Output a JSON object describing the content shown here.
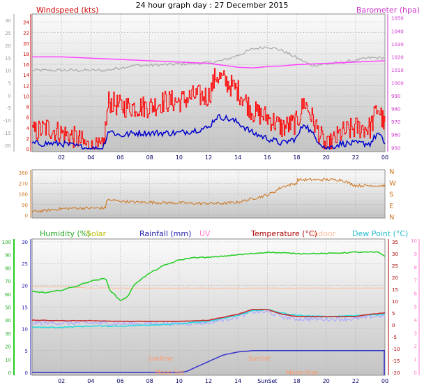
{
  "page_title": "24 hour graph day : 27 December 2015",
  "colors": {
    "bg": "#ffffff",
    "plot_top": "#f8f8f8",
    "plot_bottom": "#c8c8c8",
    "grid": "#aaaaaa",
    "wind_avg": "#0000cc",
    "wind_gust": "#ff0000",
    "barometer": "#ff44ff",
    "wind_dir": "#cc7722",
    "humidity": "#22cc22",
    "solar": "#cccc00",
    "rainfall": "#3333cc",
    "uv": "#ff8888",
    "temperature": "#cc2222",
    "indoor": "#ffbb99",
    "dewpoint": "#22dddd",
    "ghost_temp": "#aaaaff",
    "outside_temp_top": "#aaaaaa"
  },
  "x_axis": {
    "ticks": [
      "02",
      "04",
      "06",
      "08",
      "10",
      "12",
      "14",
      "16",
      "18",
      "20",
      "22",
      "00"
    ],
    "bottom_ticks": [
      "02",
      "04",
      "06",
      "08",
      "10",
      "12",
      "14",
      "SunSet",
      "18",
      "20",
      "22",
      "00"
    ],
    "range_hours": [
      0,
      24
    ]
  },
  "chart_data": [
    {
      "type": "line",
      "title": "",
      "left_label": "Windspeed (kts)",
      "right_label": "Barometer (hpa)",
      "y_left_ticks": [
        "24",
        "22",
        "20",
        "18",
        "16",
        "14",
        "12",
        "10",
        "8",
        "6",
        "4",
        "2",
        "0"
      ],
      "y_left_range": [
        0,
        25
      ],
      "y_outer_ticks": [
        "30",
        "25",
        "20",
        "15",
        "10",
        "5",
        "0",
        "-5",
        "-10",
        "-15",
        "-20"
      ],
      "y_outer_range": [
        -22,
        32
      ],
      "y_right_ticks": [
        "1050",
        "1040",
        "1030",
        "1020",
        "1010",
        "1000",
        "990",
        "980",
        "970",
        "960",
        "950"
      ],
      "y_right_range": [
        948,
        1052
      ],
      "series": [
        {
          "name": "Barometer (hpa)",
          "x": [
            0,
            1,
            2,
            3,
            4,
            5,
            6,
            7,
            8,
            9,
            10,
            11,
            12,
            13,
            14,
            15,
            16,
            17,
            18,
            19,
            20,
            21,
            22,
            23,
            24
          ],
          "values": [
            1020,
            1020,
            1020,
            1019.5,
            1019,
            1018.5,
            1018,
            1017.5,
            1017,
            1016.5,
            1016,
            1015.5,
            1015,
            1013.5,
            1012,
            1011.5,
            1012.5,
            1013,
            1014,
            1014.5,
            1015,
            1015.5,
            1016,
            1016.5,
            1017
          ]
        },
        {
          "name": "Outside temp (grey)",
          "x": [
            0,
            2,
            4,
            5,
            6,
            7,
            8,
            10,
            12,
            13,
            14,
            15,
            16,
            17,
            18,
            19,
            20,
            21,
            22,
            23,
            24
          ],
          "values": [
            10,
            10,
            10,
            10,
            11,
            12,
            12,
            12.5,
            13,
            14,
            16,
            18.5,
            19.5,
            18,
            15,
            12,
            12.5,
            13,
            14,
            15,
            15
          ]
        }
      ],
      "wind_avg": {
        "x": [
          0,
          1,
          2,
          3,
          4,
          4.8,
          5.2,
          6,
          7,
          8,
          9,
          10,
          11,
          12,
          12.5,
          13,
          14,
          15,
          16,
          17,
          18,
          18.5,
          19,
          20,
          21,
          22,
          23,
          23.5,
          24
        ],
        "values": [
          1,
          1,
          1,
          0.5,
          0,
          0,
          3.5,
          2.5,
          3,
          3,
          3,
          3,
          3.5,
          4,
          6,
          6,
          5,
          3,
          2,
          1,
          2,
          5,
          3,
          0,
          1,
          1,
          1,
          3,
          1
        ]
      },
      "wind_gust": {
        "x": [
          0,
          1,
          2,
          3,
          4,
          4.8,
          5.2,
          6,
          7,
          8,
          9,
          10,
          11,
          12,
          12.5,
          13,
          14,
          15,
          16,
          17,
          18,
          18.5,
          19,
          20,
          21,
          22,
          23,
          23.5,
          24
        ],
        "values": [
          3,
          4,
          3,
          2,
          0,
          0,
          9,
          8,
          8,
          8,
          9,
          9,
          10,
          10,
          14,
          13,
          11,
          7,
          6,
          4,
          5,
          9,
          6,
          0,
          3,
          4,
          4,
          8,
          4
        ]
      }
    },
    {
      "type": "line",
      "title": "",
      "left_ticks": [
        "360",
        "270",
        "180",
        "90",
        "0"
      ],
      "y_range": [
        0,
        360
      ],
      "right_labels": [
        "N",
        "W",
        "S",
        "E",
        "N"
      ],
      "series": [
        {
          "name": "Wind direction",
          "x": [
            0,
            1,
            2,
            3,
            4,
            5,
            5.01,
            6,
            7,
            8,
            9,
            10,
            11,
            12,
            13,
            14,
            15,
            16,
            16.5,
            17,
            18,
            18.01,
            19,
            20,
            21,
            22,
            23,
            24
          ],
          "values": [
            30,
            40,
            55,
            60,
            60,
            60,
            130,
            120,
            110,
            110,
            105,
            105,
            100,
            100,
            100,
            110,
            140,
            170,
            200,
            240,
            270,
            300,
            300,
            300,
            300,
            250,
            250,
            250
          ]
        }
      ]
    },
    {
      "type": "line",
      "title": "",
      "legend": [
        "Humidity (%)",
        "Solar",
        "Rainfall (mm)",
        "UV",
        "Temperature (°C)",
        "Indoor",
        "Dew Point (°C)"
      ],
      "y_left_outer_ticks": [
        "100",
        "90",
        "80",
        "70",
        "60",
        "50",
        "40",
        "30",
        "20",
        "10",
        "0"
      ],
      "y_left_ticks": [
        "30",
        "25",
        "20",
        "15",
        "10",
        "5",
        "0"
      ],
      "y_right_ticks": [
        "35",
        "30",
        "25",
        "20",
        "15",
        "10",
        "5",
        "0",
        "-5",
        "-10",
        "-15",
        "-20"
      ],
      "y_right_outer_ticks": [
        "10",
        "9",
        "8",
        "7",
        "6",
        "5",
        "4",
        "3",
        "2",
        "1",
        "0"
      ],
      "y_range": [
        0,
        30
      ],
      "annotations": [
        "SunRise",
        "SunSet",
        "Moon Set",
        "Moon Rise"
      ],
      "series": [
        {
          "name": "Humidity (%)",
          "x": [
            0,
            1,
            2,
            3,
            4,
            5,
            5.3,
            6,
            6.5,
            7,
            8,
            9,
            10,
            11,
            12,
            13,
            14,
            16,
            18,
            20,
            22,
            23.5,
            24
          ],
          "values": [
            62,
            61,
            63,
            66,
            70,
            72,
            63,
            55,
            58,
            68,
            76,
            82,
            86,
            88,
            88,
            89,
            90,
            92,
            91,
            91,
            92,
            92,
            89
          ]
        },
        {
          "name": "Temperature (°C)",
          "x": [
            0,
            2,
            4,
            6,
            8,
            10,
            12,
            14,
            15,
            16,
            17,
            18,
            20,
            22,
            23,
            24
          ],
          "values": [
            2,
            1.8,
            1.8,
            1.5,
            1.5,
            1.5,
            2,
            4.5,
            6.5,
            6.5,
            4.5,
            3.5,
            3.5,
            3.5,
            4.5,
            5
          ]
        },
        {
          "name": "Dew Point (°C)",
          "x": [
            0,
            2,
            4,
            6,
            8,
            10,
            12,
            14,
            15,
            16,
            17,
            18,
            20,
            22,
            24
          ],
          "values": [
            -1,
            -1,
            -0.5,
            -0.5,
            0,
            0.5,
            1.5,
            4,
            6,
            6.5,
            5,
            4,
            3.5,
            4,
            4.5
          ]
        },
        {
          "name": "Indoor",
          "x": [
            0,
            2,
            4,
            6,
            8,
            10,
            12,
            14,
            16,
            18,
            20,
            22,
            24
          ],
          "values": [
            16,
            16,
            15.5,
            15.5,
            15.5,
            15.5,
            15.5,
            15.5,
            15.5,
            15.5,
            15.5,
            15.5,
            15.5
          ]
        },
        {
          "name": "Rainfall (mm)",
          "x": [
            0,
            10,
            10.5,
            11,
            12,
            13,
            14,
            15,
            16,
            17,
            18,
            20,
            22,
            24
          ],
          "values": [
            0,
            0,
            0.2,
            1,
            2.5,
            4,
            4.7,
            5,
            5,
            5,
            5,
            5,
            5,
            5
          ]
        }
      ]
    }
  ]
}
